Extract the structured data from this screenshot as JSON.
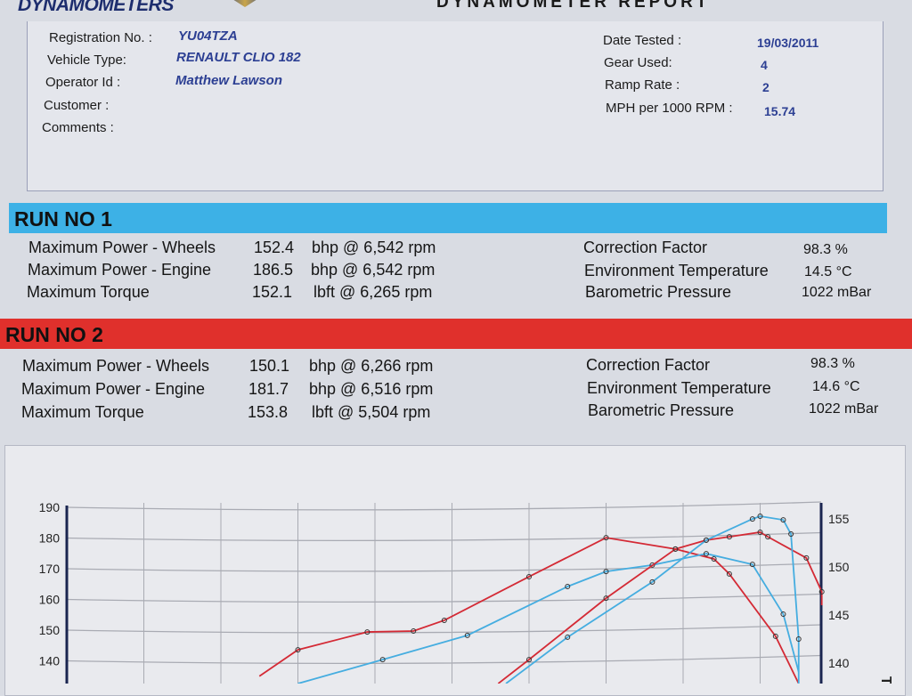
{
  "header": {
    "brand": "DYNAMOMETERS",
    "title": "DYNAMOMETER REPORT"
  },
  "info": {
    "left": [
      {
        "label": "Registration No. :",
        "value": "YU04TZA"
      },
      {
        "label": "Vehicle Type:",
        "value": "RENAULT CLIO 182"
      },
      {
        "label": "Operator Id :",
        "value": "Matthew Lawson"
      },
      {
        "label": "Customer :",
        "value": ""
      },
      {
        "label": "Comments :",
        "value": ""
      }
    ],
    "right": [
      {
        "label": "Date Tested :",
        "value": "19/03/2011"
      },
      {
        "label": "Gear Used:",
        "value": "4"
      },
      {
        "label": "Ramp Rate :",
        "value": "2"
      },
      {
        "label": "MPH per 1000 RPM :",
        "value": "15.74"
      }
    ]
  },
  "runs": [
    {
      "title": "RUN NO 1",
      "color": "#3db1e6",
      "rows": [
        {
          "label": "Maximum Power - Wheels",
          "value": "152.4",
          "unit": "bhp @ 6,542 rpm"
        },
        {
          "label": "Maximum Power - Engine",
          "value": "186.5",
          "unit": "bhp @ 6,542 rpm"
        },
        {
          "label": "Maximum Torque",
          "value": "152.1",
          "unit": "lbft @ 6,265 rpm"
        }
      ],
      "env": [
        {
          "label": "Correction Factor",
          "value": "98.3 %"
        },
        {
          "label": "Environment Temperature",
          "value": "14.5 °C"
        },
        {
          "label": "Barometric Pressure",
          "value": "1022 mBar"
        }
      ]
    },
    {
      "title": "RUN NO 2",
      "color": "#e0302c",
      "rows": [
        {
          "label": "Maximum Power - Wheels",
          "value": "150.1",
          "unit": "bhp @ 6,266 rpm"
        },
        {
          "label": "Maximum Power - Engine",
          "value": "181.7",
          "unit": "bhp @ 6,516 rpm"
        },
        {
          "label": "Maximum Torque",
          "value": "153.8",
          "unit": "lbft @ 5,504 rpm"
        }
      ],
      "env": [
        {
          "label": "Correction Factor",
          "value": "98.3 %"
        },
        {
          "label": "Environment Temperature",
          "value": "14.6 °C"
        },
        {
          "label": "Barometric Pressure",
          "value": "1022 mBar"
        }
      ]
    }
  ],
  "chart_data": {
    "type": "line",
    "left_axis": {
      "ticks": [
        140,
        150,
        160,
        170,
        180,
        190
      ],
      "range": [
        130,
        190
      ]
    },
    "right_axis": {
      "ticks": [
        140,
        145,
        150,
        155
      ],
      "label_fragment": "T"
    },
    "grid": true,
    "series": [
      {
        "color": "#d42a35",
        "points": [
          [
            2.5,
            135
          ],
          [
            3.0,
            143.6
          ],
          [
            3.9,
            149.4
          ],
          [
            4.5,
            149.7
          ],
          [
            4.9,
            153.2
          ],
          [
            6.0,
            167.4
          ],
          [
            7.0,
            180.1
          ],
          [
            7.9,
            176.4
          ],
          [
            8.4,
            173.2
          ],
          [
            8.6,
            168.3
          ],
          [
            9.2,
            148
          ],
          [
            9.5,
            132.6
          ]
        ]
      },
      {
        "color": "#45ade0",
        "points": [
          [
            3.0,
            132.6
          ],
          [
            4.1,
            140.4
          ],
          [
            5.2,
            148.3
          ],
          [
            6.5,
            164.2
          ],
          [
            7.0,
            169.1
          ],
          [
            7.6,
            171.2
          ],
          [
            8.3,
            174.9
          ],
          [
            8.9,
            171.4
          ],
          [
            9.3,
            155.2
          ],
          [
            9.5,
            136.4
          ]
        ]
      },
      {
        "color": "#d42a35",
        "points": [
          [
            5.6,
            132.6
          ],
          [
            6.0,
            140.4
          ],
          [
            7.0,
            160.4
          ],
          [
            7.9,
            176.4
          ],
          [
            8.3,
            179.3
          ],
          [
            8.6,
            180.4
          ],
          [
            9.0,
            181.9
          ],
          [
            9.1,
            180.4
          ],
          [
            9.6,
            173.5
          ],
          [
            9.8,
            162.5
          ],
          [
            9.8,
            158.1
          ]
        ]
      },
      {
        "color": "#45ade0",
        "points": [
          [
            5.7,
            132.6
          ],
          [
            6.5,
            147.7
          ],
          [
            7.6,
            165.7
          ],
          [
            8.3,
            179.3
          ],
          [
            8.9,
            186.2
          ],
          [
            9.0,
            187.1
          ],
          [
            9.3,
            185.9
          ],
          [
            9.4,
            181.3
          ],
          [
            9.5,
            147.1
          ],
          [
            9.5,
            132.6
          ]
        ]
      }
    ]
  }
}
